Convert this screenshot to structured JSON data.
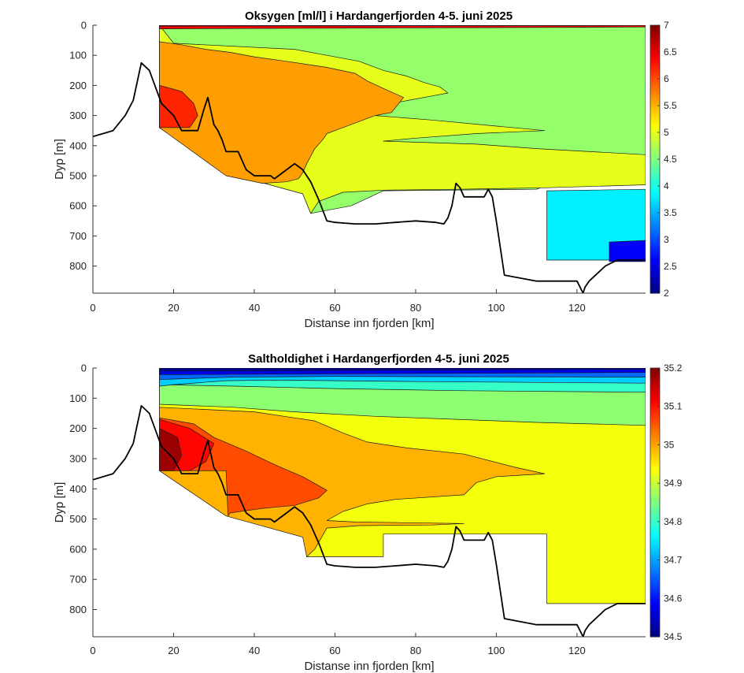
{
  "chart_data": [
    {
      "type": "contour",
      "title": "Oksygen [ml/l] i Hardangerfjorden 4-5. juni 2025",
      "xlabel": "Distanse inn fjorden [km]",
      "ylabel": "Dyp [m]",
      "xlim": [
        0,
        137
      ],
      "ylim": [
        0,
        890
      ],
      "y_reversed": true,
      "x_ticks": [
        "0",
        "20",
        "40",
        "60",
        "80",
        "100",
        "120"
      ],
      "x_tick_values": [
        0,
        20,
        40,
        60,
        80,
        100,
        120
      ],
      "y_ticks": [
        "0",
        "100",
        "200",
        "300",
        "400",
        "500",
        "600",
        "700",
        "800"
      ],
      "y_tick_values": [
        0,
        100,
        200,
        300,
        400,
        500,
        600,
        700,
        800
      ],
      "colorbar": {
        "range": [
          2,
          7
        ],
        "ticks": [
          "2",
          "2.5",
          "3",
          "3.5",
          "4",
          "4.5",
          "5",
          "5.5",
          "6",
          "6.5",
          "7"
        ],
        "tick_values": [
          2,
          2.5,
          3,
          3.5,
          4,
          4.5,
          5,
          5.5,
          6,
          6.5,
          7
        ]
      },
      "regions": [
        {
          "value": 4.6,
          "points": [
            [
              16.5,
              0
            ],
            [
              137,
              0
            ],
            [
              137,
              530
            ],
            [
              112.5,
              530
            ],
            [
              110,
              545
            ],
            [
              72,
              550
            ],
            [
              64,
              600
            ],
            [
              54,
              625
            ],
            [
              52,
              560
            ],
            [
              33,
              490
            ],
            [
              16.5,
              340
            ]
          ]
        },
        {
          "value": 5.0,
          "points": [
            [
              16.5,
              0
            ],
            [
              20,
              60
            ],
            [
              50,
              80
            ],
            [
              58,
              100
            ],
            [
              66,
              120
            ],
            [
              72,
              150
            ],
            [
              78,
              170
            ],
            [
              82,
              190
            ],
            [
              86,
              205
            ],
            [
              88,
              225
            ],
            [
              84,
              235
            ],
            [
              78,
              250
            ],
            [
              72,
              265
            ],
            [
              67,
              275
            ],
            [
              66,
              290
            ],
            [
              70,
              300
            ],
            [
              84,
              315
            ],
            [
              100,
              335
            ],
            [
              112,
              350
            ],
            [
              95,
              360
            ],
            [
              80,
              375
            ],
            [
              72,
              385
            ],
            [
              95,
              395
            ],
            [
              110,
              410
            ],
            [
              137,
              430
            ],
            [
              137,
              530
            ],
            [
              112,
              540
            ],
            [
              90,
              545
            ],
            [
              72,
              548
            ],
            [
              62,
              555
            ],
            [
              56,
              585
            ],
            [
              54,
              625
            ],
            [
              52,
              560
            ],
            [
              33,
              490
            ],
            [
              16.5,
              340
            ]
          ]
        },
        {
          "value": 5.6,
          "points": [
            [
              16.5,
              55
            ],
            [
              22,
              65
            ],
            [
              28,
              80
            ],
            [
              34,
              90
            ],
            [
              40,
              105
            ],
            [
              48,
              120
            ],
            [
              58,
              140
            ],
            [
              65,
              160
            ],
            [
              68,
              185
            ],
            [
              72,
              210
            ],
            [
              77,
              240
            ],
            [
              74,
              290
            ],
            [
              70,
              300
            ],
            [
              66,
              320
            ],
            [
              61,
              345
            ],
            [
              58,
              360
            ],
            [
              57,
              380
            ],
            [
              55,
              410
            ],
            [
              53,
              460
            ],
            [
              52,
              490
            ],
            [
              51,
              510
            ],
            [
              48,
              520
            ],
            [
              42,
              525
            ],
            [
              33,
              500
            ],
            [
              16.5,
              340
            ]
          ]
        },
        {
          "value": 6.2,
          "points": [
            [
              16.5,
              200
            ],
            [
              22,
              220
            ],
            [
              25,
              260
            ],
            [
              26,
              300
            ],
            [
              24,
              340
            ],
            [
              16.5,
              340
            ]
          ]
        },
        {
          "value": 6.4,
          "points": [
            [
              16.5,
              0
            ],
            [
              137,
              0
            ],
            [
              137,
              6
            ],
            [
              16.5,
              12
            ]
          ]
        },
        {
          "value": 6.9,
          "points": [
            [
              16.5,
              0
            ],
            [
              137,
              0
            ],
            [
              137,
              1
            ],
            [
              16.5,
              3
            ]
          ]
        },
        {
          "value": 3.8,
          "points": [
            [
              112.5,
              550
            ],
            [
              137,
              545
            ],
            [
              137,
              780
            ],
            [
              112.5,
              780
            ]
          ]
        },
        {
          "value": 2.6,
          "points": [
            [
              128,
              720
            ],
            [
              137,
              715
            ],
            [
              137,
              785
            ],
            [
              128,
              785
            ]
          ]
        }
      ]
    },
    {
      "type": "contour",
      "title": "Saltholdighet i Hardangerfjorden 4-5. juni 2025",
      "xlabel": "Distanse inn fjorden [km]",
      "ylabel": "Dyp [m]",
      "xlim": [
        0,
        137
      ],
      "ylim": [
        0,
        890
      ],
      "y_reversed": true,
      "x_ticks": [
        "0",
        "20",
        "40",
        "60",
        "80",
        "100",
        "120"
      ],
      "x_tick_values": [
        0,
        20,
        40,
        60,
        80,
        100,
        120
      ],
      "y_ticks": [
        "0",
        "100",
        "200",
        "300",
        "400",
        "500",
        "600",
        "700",
        "800"
      ],
      "y_tick_values": [
        0,
        100,
        200,
        300,
        400,
        500,
        600,
        700,
        800
      ],
      "colorbar": {
        "range": [
          34.5,
          35.2
        ],
        "ticks": [
          "34.5",
          "34.6",
          "34.7",
          "34.8",
          "34.9",
          "35",
          "35.1",
          "35.2"
        ],
        "tick_values": [
          34.5,
          34.6,
          34.7,
          34.8,
          34.9,
          35.0,
          35.1,
          35.2
        ]
      },
      "regions": [
        {
          "value": 34.93,
          "points": [
            [
              16.5,
              0
            ],
            [
              137,
              0
            ],
            [
              137,
              780
            ],
            [
              112.5,
              780
            ],
            [
              112.5,
              550
            ],
            [
              72,
              550
            ],
            [
              72,
              625
            ],
            [
              53,
              625
            ],
            [
              53,
              490
            ],
            [
              33.5,
              490
            ],
            [
              33.5,
              340
            ],
            [
              16.5,
              340
            ]
          ]
        },
        {
          "value": 34.86,
          "points": [
            [
              16.5,
              0
            ],
            [
              137,
              0
            ],
            [
              137,
              190
            ],
            [
              110,
              180
            ],
            [
              90,
              170
            ],
            [
              70,
              160
            ],
            [
              50,
              145
            ],
            [
              35,
              130
            ],
            [
              16.5,
              120
            ]
          ]
        },
        {
          "value": 34.8,
          "points": [
            [
              16.5,
              0
            ],
            [
              137,
              0
            ],
            [
              137,
              80
            ],
            [
              90,
              75
            ],
            [
              60,
              68
            ],
            [
              35,
              60
            ],
            [
              16.5,
              55
            ]
          ]
        },
        {
          "value": 34.73,
          "points": [
            [
              16.5,
              0
            ],
            [
              137,
              0
            ],
            [
              137,
              50
            ],
            [
              80,
              45
            ],
            [
              45,
              40
            ],
            [
              33,
              42
            ],
            [
              20,
              55
            ],
            [
              16.5,
              60
            ]
          ]
        },
        {
          "value": 34.66,
          "points": [
            [
              16.5,
              0
            ],
            [
              137,
              0
            ],
            [
              137,
              30
            ],
            [
              60,
              28
            ],
            [
              35,
              30
            ],
            [
              16.5,
              38
            ]
          ]
        },
        {
          "value": 34.57,
          "points": [
            [
              16.5,
              0
            ],
            [
              137,
              0
            ],
            [
              137,
              15
            ],
            [
              16.5,
              22
            ]
          ]
        },
        {
          "value": 34.51,
          "points": [
            [
              16.5,
              0
            ],
            [
              137,
              0
            ],
            [
              137,
              4
            ],
            [
              16.5,
              10
            ]
          ]
        },
        {
          "value": 34.99,
          "points": [
            [
              16.5,
              130
            ],
            [
              40,
              145
            ],
            [
              55,
              175
            ],
            [
              62,
              215
            ],
            [
              68,
              245
            ],
            [
              78,
              265
            ],
            [
              92,
              285
            ],
            [
              105,
              330
            ],
            [
              112,
              350
            ],
            [
              100,
              360
            ],
            [
              95,
              380
            ],
            [
              92,
              420
            ],
            [
              75,
              435
            ],
            [
              68,
              450
            ],
            [
              62,
              475
            ],
            [
              58,
              505
            ],
            [
              65,
              510
            ],
            [
              92,
              515
            ],
            [
              84,
              520
            ],
            [
              66,
              522
            ],
            [
              58,
              530
            ],
            [
              55,
              600
            ],
            [
              53,
              625
            ],
            [
              52,
              560
            ],
            [
              33,
              490
            ],
            [
              16.5,
              340
            ]
          ]
        },
        {
          "value": 35.06,
          "points": [
            [
              16.5,
              165
            ],
            [
              25,
              185
            ],
            [
              30,
              230
            ],
            [
              38,
              275
            ],
            [
              45,
              320
            ],
            [
              52,
              360
            ],
            [
              58,
              405
            ],
            [
              56,
              430
            ],
            [
              50,
              455
            ],
            [
              42,
              465
            ],
            [
              34,
              480
            ],
            [
              33.5,
              490
            ],
            [
              33,
              340
            ],
            [
              16.5,
              340
            ]
          ]
        },
        {
          "value": 35.11,
          "points": [
            [
              16.5,
              170
            ],
            [
              24,
              200
            ],
            [
              30,
              250
            ],
            [
              28,
              310
            ],
            [
              24,
              340
            ],
            [
              16.5,
              340
            ]
          ]
        },
        {
          "value": 35.18,
          "points": [
            [
              16.5,
              200
            ],
            [
              21,
              230
            ],
            [
              22,
              290
            ],
            [
              20,
              340
            ],
            [
              16.5,
              340
            ]
          ]
        }
      ]
    }
  ],
  "bathymetry": {
    "x": [
      0,
      5,
      8,
      10,
      12,
      14,
      17,
      20,
      22,
      24,
      26,
      27.5,
      28.5,
      30,
      31,
      32,
      33,
      36,
      38,
      40,
      44,
      45,
      48,
      50,
      52,
      54,
      56,
      58,
      60,
      65,
      70,
      75,
      80,
      85,
      87,
      88,
      89,
      90,
      91,
      92,
      93,
      94,
      95,
      97,
      98,
      99,
      100,
      102,
      110,
      120,
      121.5,
      122,
      123,
      127,
      130,
      137
    ],
    "depth": [
      370,
      350,
      300,
      250,
      125,
      150,
      260,
      300,
      350,
      350,
      350,
      280,
      240,
      330,
      350,
      380,
      420,
      420,
      480,
      500,
      500,
      510,
      480,
      460,
      480,
      520,
      580,
      650,
      655,
      660,
      660,
      655,
      650,
      655,
      660,
      640,
      600,
      525,
      540,
      570,
      570,
      570,
      570,
      570,
      545,
      570,
      650,
      830,
      850,
      850,
      890,
      870,
      850,
      800,
      780,
      780
    ]
  }
}
